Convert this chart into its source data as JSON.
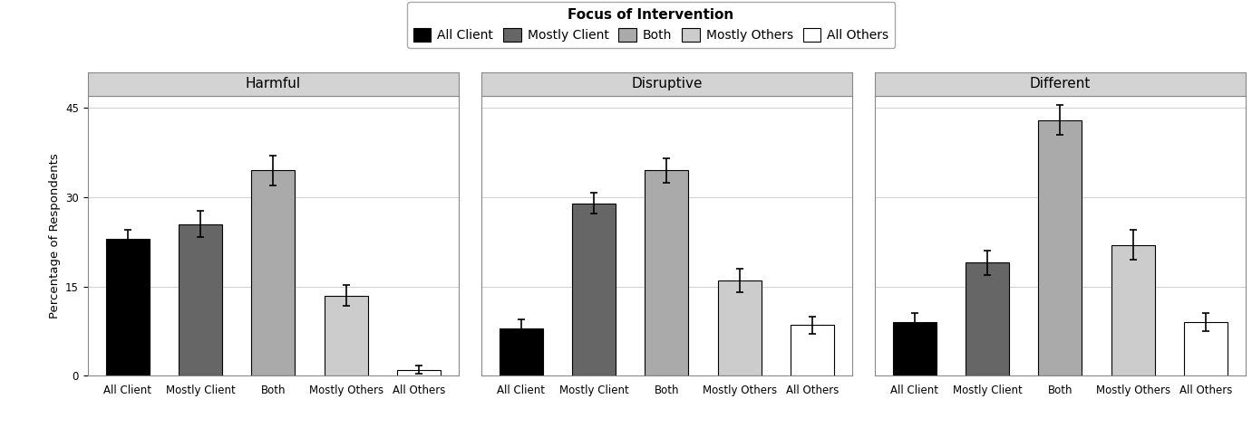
{
  "panels": [
    "Harmful",
    "Disruptive",
    "Different"
  ],
  "categories": [
    "All Client",
    "Mostly Client",
    "Both",
    "Mostly Others",
    "All Others"
  ],
  "values": {
    "Harmful": [
      23.0,
      25.5,
      34.5,
      13.5,
      1.0
    ],
    "Disruptive": [
      8.0,
      29.0,
      34.5,
      16.0,
      8.5
    ],
    "Different": [
      9.0,
      19.0,
      43.0,
      22.0,
      9.0
    ]
  },
  "errors": {
    "Harmful": [
      1.5,
      2.2,
      2.5,
      1.8,
      0.7
    ],
    "Disruptive": [
      1.5,
      1.8,
      2.0,
      2.0,
      1.5
    ],
    "Different": [
      1.5,
      2.0,
      2.5,
      2.5,
      1.5
    ]
  },
  "bar_colors": [
    "#000000",
    "#666666",
    "#aaaaaa",
    "#cccccc",
    "#ffffff"
  ],
  "bar_edgecolor": "#000000",
  "legend_title": "Focus of Intervention",
  "legend_labels": [
    "All Client",
    "Mostly Client",
    "Both",
    "Mostly Others",
    "All Others"
  ],
  "ylabel": "Percentage of Respondents",
  "ylim": [
    0,
    47
  ],
  "yticks": [
    0,
    15,
    30,
    45
  ],
  "panel_title_bg": "#d3d3d3",
  "panel_border_color": "#888888",
  "fig_bg": "#ffffff",
  "ax_bg": "#ffffff",
  "grid_color": "#d0d0d0",
  "bar_width": 0.6,
  "capsize": 3,
  "ecolor": "#000000",
  "elinewidth": 1.2,
  "title_fontsize": 11,
  "axis_fontsize": 9.5,
  "tick_fontsize": 8.5,
  "legend_fontsize": 10,
  "legend_title_fontsize": 11
}
